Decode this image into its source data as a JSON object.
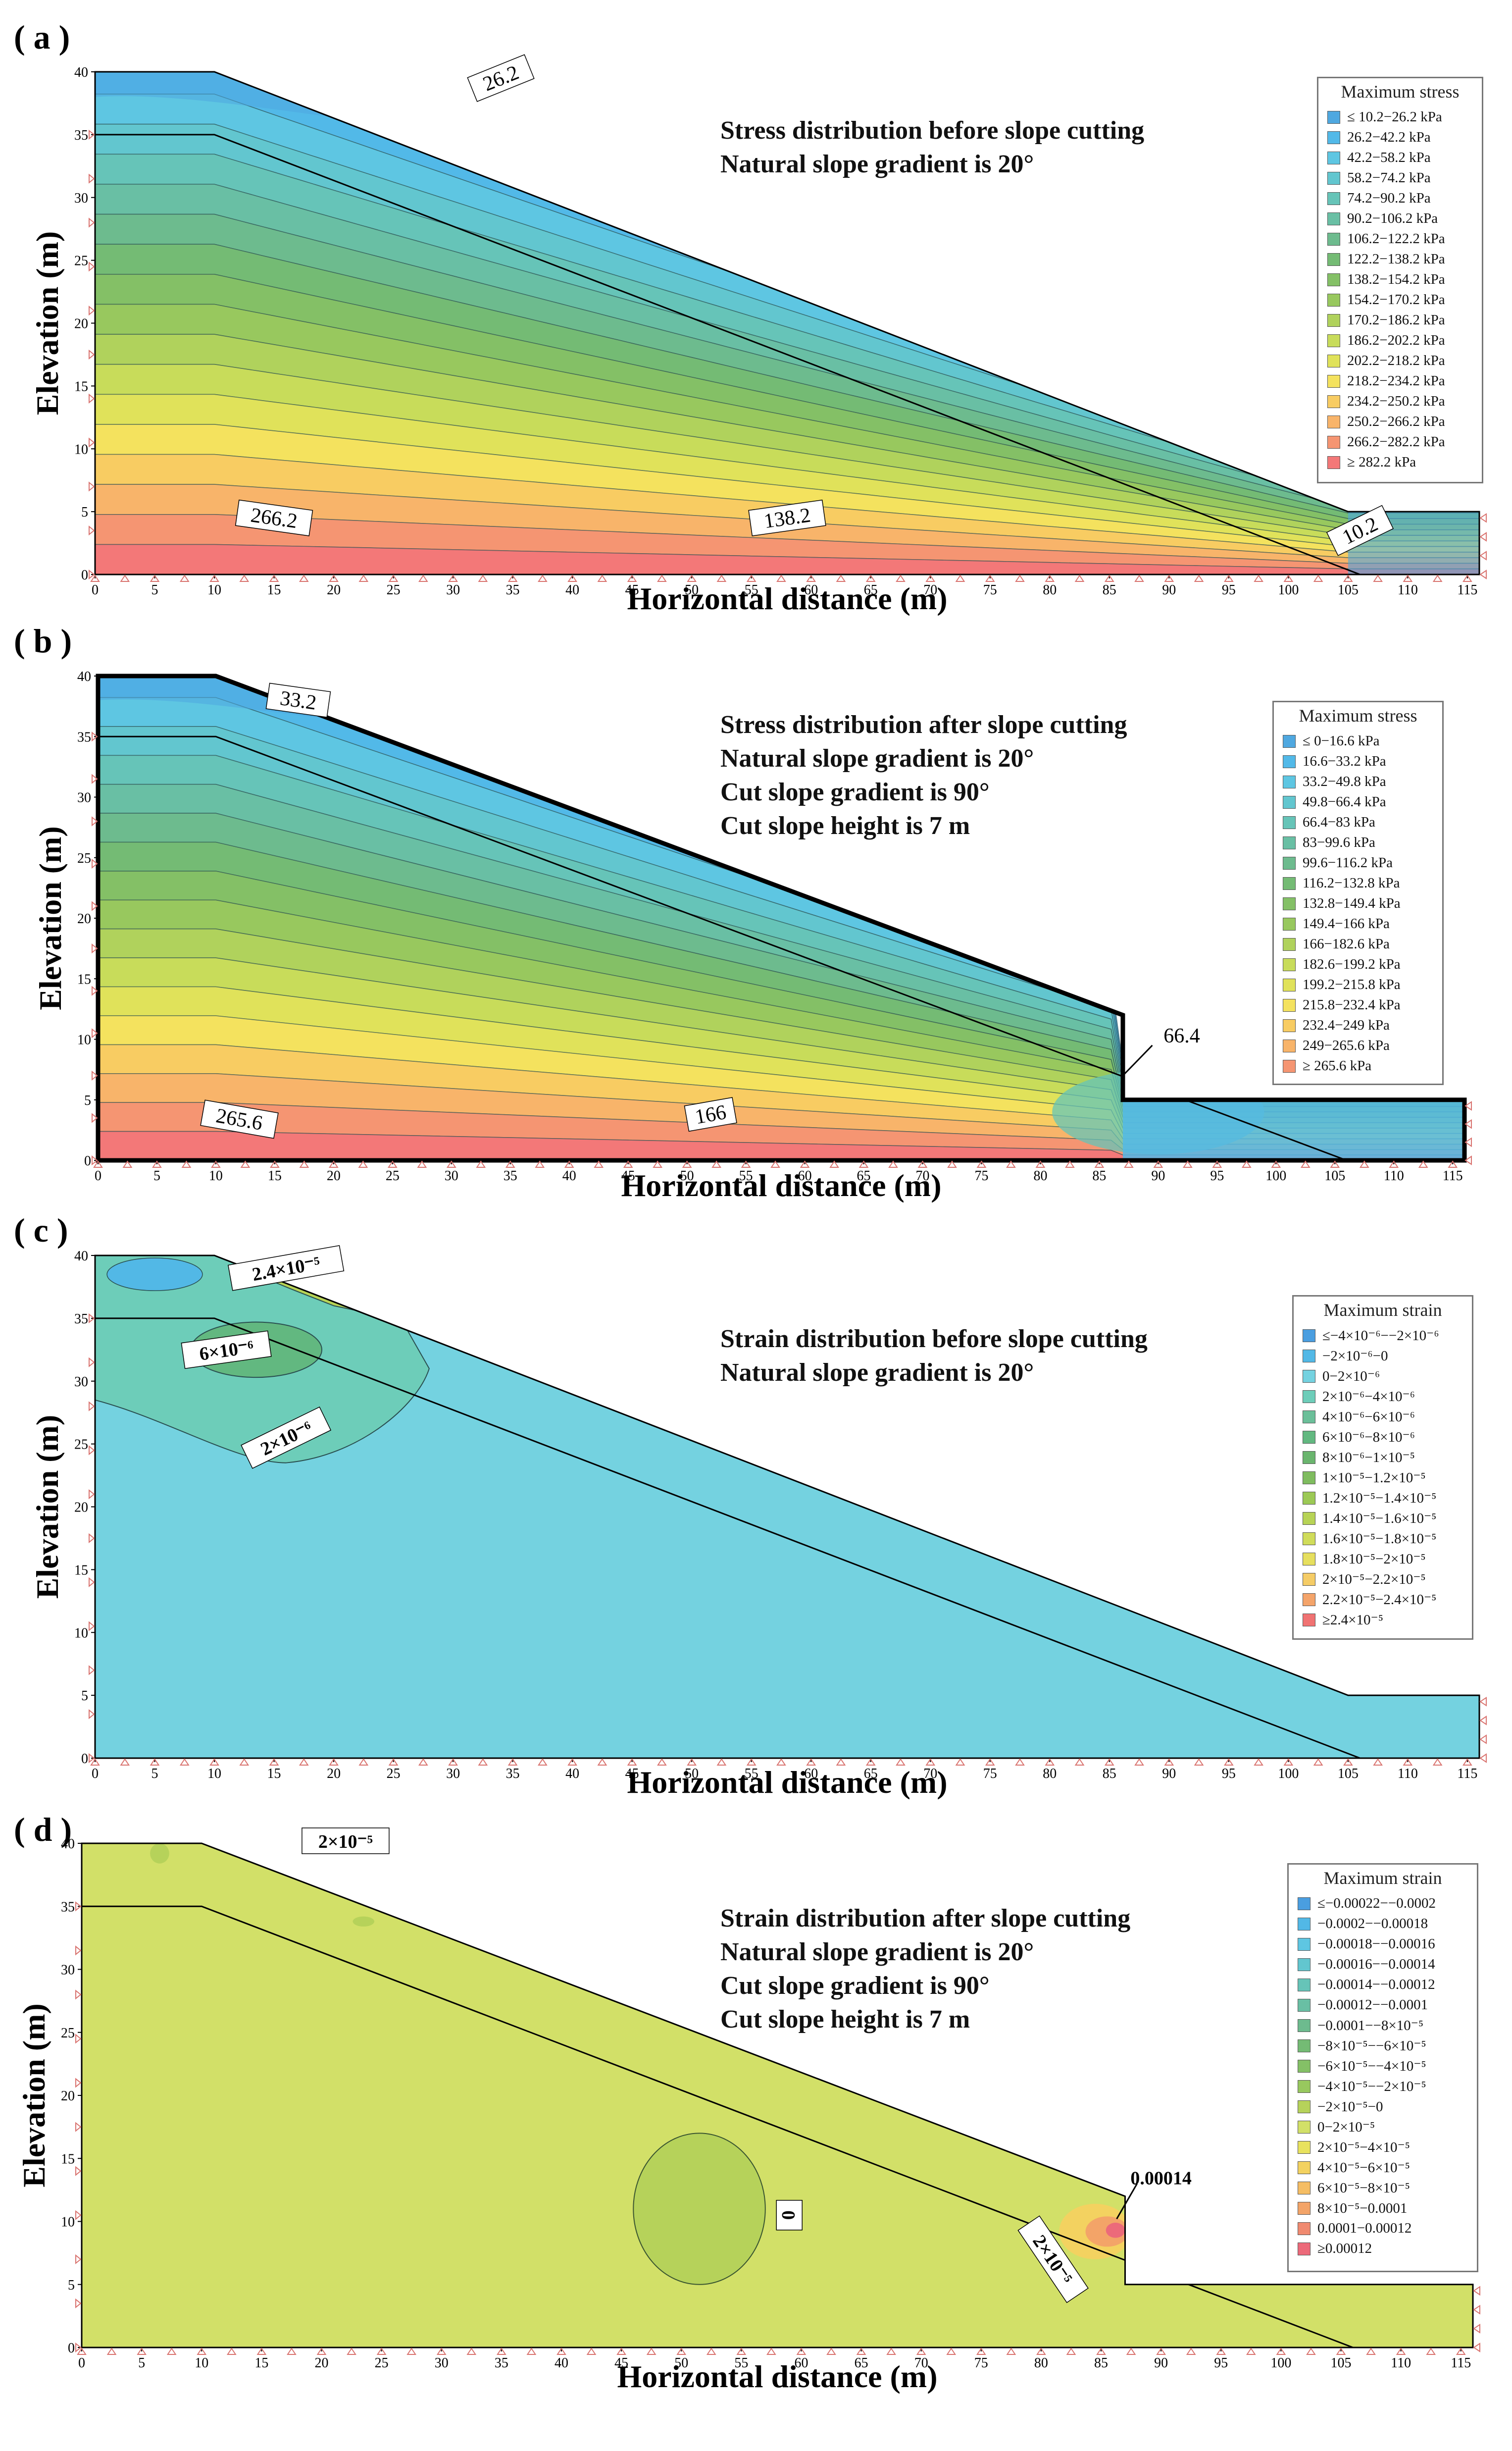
{
  "panels": [
    {
      "id": "a",
      "label": "( a )",
      "kind": "stress",
      "description": [
        "Stress distribution before slope cutting",
        "Natural slope gradient is 20°"
      ],
      "legend_title": "Maximum stress",
      "legend_items": [
        "≤ 10.2−26.2 kPa",
        "26.2−42.2 kPa",
        "42.2−58.2 kPa",
        "58.2−74.2 kPa",
        "74.2−90.2 kPa",
        "90.2−106.2 kPa",
        "106.2−122.2 kPa",
        "122.2−138.2 kPa",
        "138.2−154.2 kPa",
        "154.2−170.2 kPa",
        "170.2−186.2 kPa",
        "186.2−202.2 kPa",
        "202.2−218.2 kPa",
        "218.2−234.2 kPa",
        "234.2−250.2 kPa",
        "250.2−266.2 kPa",
        "266.2−282.2 kPa",
        "≥ 282.2 kPa"
      ],
      "contour_labels": [
        "26.2",
        "266.2",
        "138.2",
        "10.2"
      ],
      "cut": false
    },
    {
      "id": "b",
      "label": "( b )",
      "kind": "stress",
      "description": [
        "Stress distribution after slope cutting",
        "Natural slope gradient is 20°",
        "Cut slope gradient is 90°",
        "Cut slope height is 7 m"
      ],
      "legend_title": "Maximum stress",
      "legend_items": [
        "≤ 0−16.6 kPa",
        "16.6−33.2 kPa",
        "33.2−49.8 kPa",
        "49.8−66.4 kPa",
        "66.4−83 kPa",
        "83−99.6 kPa",
        "99.6−116.2 kPa",
        "116.2−132.8 kPa",
        "132.8−149.4 kPa",
        "149.4−166 kPa",
        "166−182.6 kPa",
        "182.6−199.2 kPa",
        "199.2−215.8 kPa",
        "215.8−232.4 kPa",
        "232.4−249 kPa",
        "249−265.6 kPa",
        "≥ 265.6 kPa"
      ],
      "contour_labels": [
        "33.2",
        "265.6",
        "166",
        "66.4"
      ],
      "cut": true
    },
    {
      "id": "c",
      "label": "( c )",
      "kind": "strain",
      "description": [
        "Strain distribution before slope cutting",
        "Natural slope gradient is 20°"
      ],
      "legend_title": "Maximum strain",
      "legend_items": [
        "≤−4×10⁻⁶−−2×10⁻⁶",
        "−2×10⁻⁶−0",
        "0−2×10⁻⁶",
        "2×10⁻⁶−4×10⁻⁶",
        "4×10⁻⁶−6×10⁻⁶",
        "6×10⁻⁶−8×10⁻⁶",
        "8×10⁻⁶−1×10⁻⁵",
        "1×10⁻⁵−1.2×10⁻⁵",
        "1.2×10⁻⁵−1.4×10⁻⁵",
        "1.4×10⁻⁵−1.6×10⁻⁵",
        "1.6×10⁻⁵−1.8×10⁻⁵",
        "1.8×10⁻⁵−2×10⁻⁵",
        "2×10⁻⁵−2.2×10⁻⁵",
        "2.2×10⁻⁵−2.4×10⁻⁵",
        "≥2.4×10⁻⁵"
      ],
      "contour_labels": [
        "2.4×10⁻⁵",
        "6×10⁻⁶",
        "2×10⁻⁶"
      ],
      "cut": false
    },
    {
      "id": "d",
      "label": "( d )",
      "kind": "strain",
      "description": [
        "Strain distribution after slope cutting",
        "Natural slope gradient is 20°",
        "Cut slope gradient is 90°",
        "Cut slope height is 7 m"
      ],
      "legend_title": "Maximum strain",
      "legend_items": [
        "≤−0.00022−−0.0002",
        "−0.0002−−0.00018",
        "−0.00018−−0.00016",
        "−0.00016−−0.00014",
        "−0.00014−−0.00012",
        "−0.00012−−0.0001",
        "−0.0001−−8×10⁻⁵",
        "−8×10⁻⁵−−6×10⁻⁵",
        "−6×10⁻⁵−−4×10⁻⁵",
        "−4×10⁻⁵−−2×10⁻⁵",
        "−2×10⁻⁵−0",
        "0−2×10⁻⁵",
        "2×10⁻⁵−4×10⁻⁵",
        "4×10⁻⁵−6×10⁻⁵",
        "6×10⁻⁵−8×10⁻⁵",
        "8×10⁻⁵−0.0001",
        "0.0001−0.00012",
        "≥0.00012"
      ],
      "contour_labels": [
        "2×10⁻⁵",
        "0",
        "2×10⁻⁵",
        "0.00014"
      ],
      "cut": true
    }
  ],
  "chart_data": {
    "type": "heatmap",
    "xlabel": "Horizontal distance (m)",
    "ylabel": "Elevation (m)",
    "xlim": [
      0,
      116
    ],
    "ylim": [
      0,
      40
    ],
    "xticks": [
      "0",
      "5",
      "10",
      "15",
      "20",
      "25",
      "30",
      "35",
      "40",
      "45",
      "50",
      "55",
      "60",
      "65",
      "70",
      "75",
      "80",
      "85",
      "90",
      "95",
      "100",
      "105",
      "110",
      "115"
    ],
    "yticks": [
      "0",
      "5",
      "10",
      "15",
      "20",
      "25",
      "30",
      "35",
      "40"
    ],
    "slope_natural": [
      [
        0,
        40
      ],
      [
        10,
        40
      ],
      [
        105,
        5
      ],
      [
        116,
        5
      ]
    ],
    "slope_cut": [
      [
        0,
        40
      ],
      [
        10,
        40
      ],
      [
        87,
        12
      ],
      [
        87,
        5
      ],
      [
        116,
        5
      ]
    ],
    "layer_boundary": [
      [
        0,
        35
      ],
      [
        10,
        35
      ],
      [
        106,
        0
      ]
    ],
    "stress_colors": [
      "#4fa8e0",
      "#52b9e8",
      "#5ec6e2",
      "#62c6cf",
      "#66c4b8",
      "#69bfa4",
      "#6dbb8e",
      "#74bb74",
      "#84c066",
      "#98c85e",
      "#b0d25c",
      "#c8dc5a",
      "#e0e25a",
      "#f4e25e",
      "#f8cc62",
      "#f8b46a",
      "#f59572",
      "#f37878"
    ],
    "strain_colors_c": [
      "#4a9ee0",
      "#52b8e6",
      "#74d2e0",
      "#6dcdb9",
      "#6bbf99",
      "#62b880",
      "#6ab56e",
      "#7fbc5f",
      "#9cc955",
      "#b7d356",
      "#d0dc5a",
      "#e6df5e",
      "#f5cc66",
      "#f4a46a",
      "#f07272"
    ],
    "strain_colors_d": [
      "#4a9ee0",
      "#52b8e6",
      "#5ec6e2",
      "#62c6cf",
      "#66c4b8",
      "#69bfa4",
      "#6dbb8e",
      "#74bb74",
      "#84c066",
      "#98c85e",
      "#b6d25a",
      "#d2e068",
      "#e8e25e",
      "#f3d260",
      "#f5bd64",
      "#f3a468",
      "#f08a70",
      "#ec6a7a"
    ]
  }
}
